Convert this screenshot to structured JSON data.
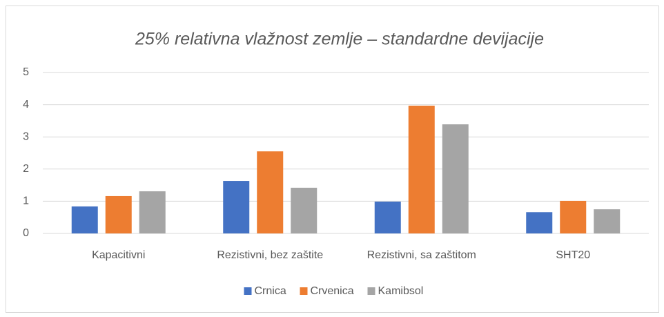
{
  "chart_data": {
    "type": "bar",
    "title": "25% relativna vlažnost zemlje – standardne devijacije",
    "categories": [
      "Kapacitivni",
      "Rezistivni, bez zaštite",
      "Rezistivni, sa zaštitom",
      "SHT20"
    ],
    "series": [
      {
        "name": "Crnica",
        "color": "#4472c4",
        "values": [
          0.84,
          1.63,
          0.99,
          0.66
        ]
      },
      {
        "name": "Crvenica",
        "color": "#ed7d31",
        "values": [
          1.16,
          2.55,
          3.97,
          1.01
        ]
      },
      {
        "name": "Kamibsol",
        "color": "#a5a5a5",
        "values": [
          1.31,
          1.42,
          3.39,
          0.75
        ]
      }
    ],
    "ylim": [
      0,
      5
    ],
    "yticks": [
      0,
      1,
      2,
      3,
      4,
      5
    ],
    "grid": true,
    "legend": "bottom"
  }
}
